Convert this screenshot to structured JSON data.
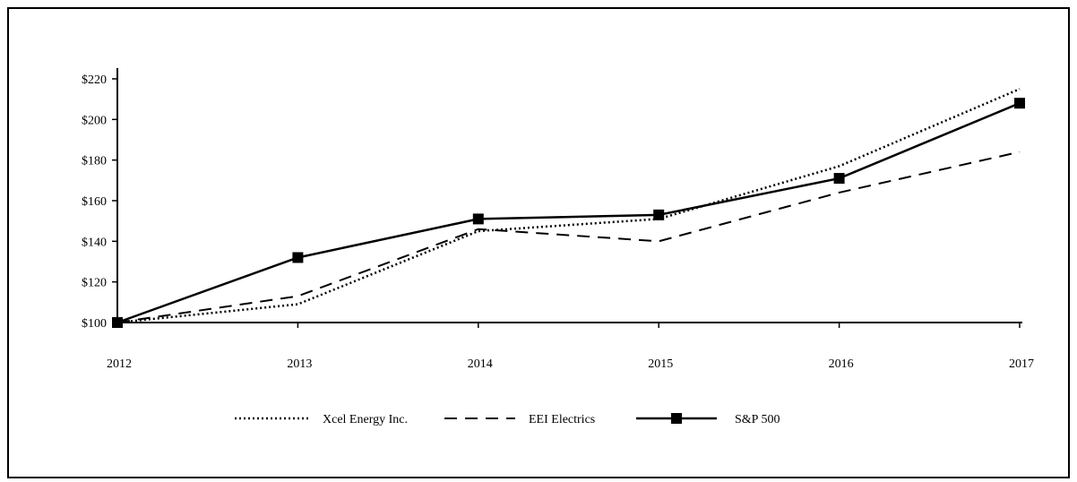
{
  "chart_data": {
    "type": "line",
    "title": "",
    "xlabel": "",
    "ylabel": "",
    "x": [
      "2012",
      "2013",
      "2014",
      "2015",
      "2016",
      "2017"
    ],
    "ylim": [
      100,
      220
    ],
    "yticks": [
      100,
      120,
      140,
      160,
      180,
      200,
      220
    ],
    "ytick_labels": [
      "$100",
      "$120",
      "$140",
      "$160",
      "$180",
      "$200",
      "$220"
    ],
    "grid": false,
    "legend_position": "bottom",
    "series": [
      {
        "name": "Xcel Energy Inc.",
        "style": "dotted",
        "values": [
          100,
          109,
          145,
          151,
          177,
          215
        ]
      },
      {
        "name": "EEI Electrics",
        "style": "dashed",
        "values": [
          100,
          113,
          146,
          140,
          164,
          184
        ]
      },
      {
        "name": "S&P 500",
        "style": "solid-square",
        "values": [
          100,
          132,
          151,
          153,
          171,
          208
        ]
      }
    ]
  }
}
